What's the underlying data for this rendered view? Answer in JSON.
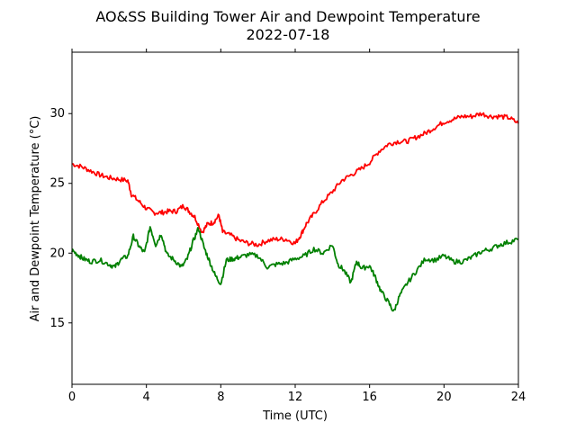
{
  "chart_data": {
    "type": "line",
    "title": "AO&SS Building Tower Air and Dewpoint Temperature",
    "subtitle": "2022-07-18",
    "xlabel": "Time (UTC)",
    "ylabel": "Air and Dewpoint Temperature (°C)",
    "xlim": [
      0,
      24
    ],
    "ylim": [
      10.6,
      34.4
    ],
    "xticks": [
      0,
      4,
      8,
      12,
      16,
      20,
      24
    ],
    "yticks": [
      15,
      20,
      25,
      30
    ],
    "grid": false,
    "legend": "none",
    "series": [
      {
        "color": "#ff0000",
        "x": [
          0,
          0.5,
          1,
          1.5,
          2,
          2.5,
          3,
          3.2,
          3.6,
          4,
          4.4,
          4.8,
          5.2,
          5.6,
          6,
          6.3,
          6.6,
          7,
          7.3,
          7.6,
          7.9,
          8.1,
          8.5,
          9,
          9.5,
          10,
          10.5,
          11,
          11.5,
          12,
          12.3,
          12.6,
          13,
          13.5,
          14,
          14.5,
          15,
          15.5,
          16,
          16.5,
          17,
          17.5,
          18,
          18.5,
          19,
          19.5,
          20,
          20.5,
          21,
          21.5,
          22,
          22.5,
          23,
          23.5,
          24
        ],
        "y": [
          26.4,
          26.2,
          25.9,
          25.6,
          25.4,
          25.3,
          25.2,
          24.2,
          23.7,
          23.2,
          22.9,
          22.9,
          23.0,
          23.0,
          23.4,
          23.0,
          22.6,
          21.5,
          22.1,
          22.2,
          22.7,
          21.5,
          21.3,
          20.9,
          20.7,
          20.6,
          20.9,
          21.0,
          21.0,
          20.7,
          21.3,
          22.1,
          22.8,
          23.7,
          24.4,
          25.2,
          25.6,
          26.0,
          26.5,
          27.3,
          27.8,
          28.0,
          28.0,
          28.3,
          28.6,
          29.0,
          29.4,
          29.6,
          29.8,
          29.8,
          30.0,
          29.8,
          29.8,
          29.7,
          29.3
        ]
      },
      {
        "color": "#008000",
        "x": [
          0,
          0.3,
          0.6,
          1,
          1.5,
          2,
          2.3,
          2.6,
          3,
          3.3,
          3.6,
          3.9,
          4.2,
          4.5,
          4.8,
          5.1,
          5.5,
          5.9,
          6.2,
          6.5,
          6.8,
          7.1,
          7.4,
          7.7,
          8,
          8.3,
          8.7,
          9,
          9.5,
          10,
          10.5,
          11,
          11.5,
          12,
          12.5,
          13,
          13.5,
          14,
          14.3,
          14.6,
          15,
          15.3,
          15.6,
          16,
          16.3,
          16.6,
          17,
          17.3,
          17.6,
          18,
          18.5,
          19,
          19.5,
          20,
          20.5,
          21,
          21.5,
          22,
          22.5,
          23,
          23.5,
          24
        ],
        "y": [
          20.2,
          19.9,
          19.6,
          19.4,
          19.5,
          19.2,
          19.0,
          19.5,
          19.8,
          21.2,
          20.5,
          20.0,
          21.9,
          20.6,
          21.4,
          19.9,
          19.5,
          19.0,
          19.6,
          20.8,
          21.8,
          20.4,
          19.4,
          18.4,
          17.8,
          19.5,
          19.6,
          19.7,
          19.9,
          19.8,
          19.0,
          19.2,
          19.3,
          19.6,
          19.8,
          20.3,
          20.0,
          20.6,
          19.2,
          18.8,
          17.9,
          19.4,
          18.9,
          19.1,
          18.3,
          17.3,
          16.5,
          15.8,
          16.9,
          17.8,
          18.7,
          19.6,
          19.5,
          19.8,
          19.4,
          19.4,
          19.7,
          20.1,
          20.3,
          20.6,
          20.8,
          21.0
        ]
      }
    ]
  }
}
